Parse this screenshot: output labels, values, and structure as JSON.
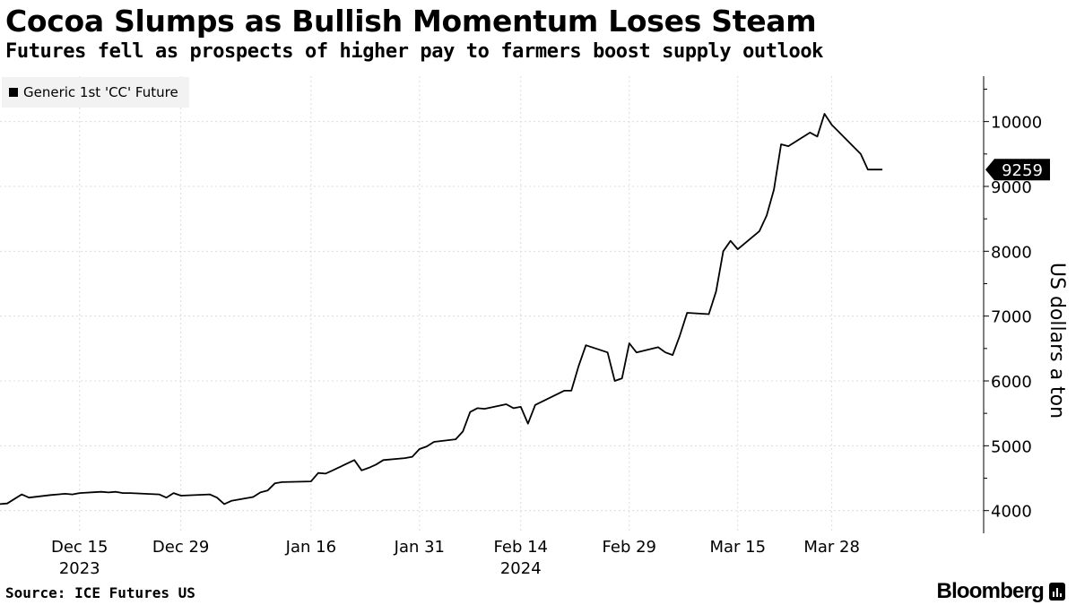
{
  "title": "Cocoa Slumps as Bullish Momentum Loses Steam",
  "subtitle": "Futures fell as prospects of higher pay to farmers boost supply outlook",
  "source": "Source: ICE Futures US",
  "brand": "Bloomberg",
  "brand_icon": "bloomberg-logo-icon",
  "colors": {
    "line": "#000000",
    "grid": "#dcdcdc",
    "legend_bg": "#f2f2f2",
    "callout_bg": "#000000",
    "callout_text": "#ffffff"
  },
  "chart_data": {
    "type": "line",
    "x_type": "date",
    "ylabel": "US dollars a ton",
    "ylim": [
      3650,
      10700
    ],
    "xlim": [
      "2023-12-04",
      "2024-04-18"
    ],
    "y_axis_side": "right",
    "grid": "horizontal",
    "legend_position": "top-left",
    "yticks": [
      4000,
      5000,
      6000,
      7000,
      8000,
      9000,
      10000
    ],
    "ytick_labels": [
      "4000",
      "5000",
      "6000",
      "7000",
      "8000",
      "9000",
      "10000"
    ],
    "xticks": [
      {
        "date": "2023-12-15",
        "label": "Dec 15",
        "year": "2023"
      },
      {
        "date": "2023-12-29",
        "label": "Dec 29",
        "year": ""
      },
      {
        "date": "2024-01-16",
        "label": "Jan 16",
        "year": ""
      },
      {
        "date": "2024-01-31",
        "label": "Jan 31",
        "year": ""
      },
      {
        "date": "2024-02-14",
        "label": "Feb 14",
        "year": "2024"
      },
      {
        "date": "2024-02-29",
        "label": "Feb 29",
        "year": ""
      },
      {
        "date": "2024-03-15",
        "label": "Mar 15",
        "year": ""
      },
      {
        "date": "2024-03-28",
        "label": "Mar 28",
        "year": ""
      }
    ],
    "last_value_label": "9259",
    "series": [
      {
        "name": "Generic 1st 'CC' Future",
        "x": [
          "2023-12-04",
          "2023-12-05",
          "2023-12-06",
          "2023-12-07",
          "2023-12-08",
          "2023-12-11",
          "2023-12-12",
          "2023-12-13",
          "2023-12-14",
          "2023-12-15",
          "2023-12-18",
          "2023-12-19",
          "2023-12-20",
          "2023-12-21",
          "2023-12-22",
          "2023-12-26",
          "2023-12-27",
          "2023-12-28",
          "2023-12-29",
          "2024-01-02",
          "2024-01-03",
          "2024-01-04",
          "2024-01-05",
          "2024-01-08",
          "2024-01-09",
          "2024-01-10",
          "2024-01-11",
          "2024-01-12",
          "2024-01-16",
          "2024-01-17",
          "2024-01-18",
          "2024-01-19",
          "2024-01-22",
          "2024-01-23",
          "2024-01-24",
          "2024-01-25",
          "2024-01-26",
          "2024-01-29",
          "2024-01-30",
          "2024-01-31",
          "2024-02-01",
          "2024-02-02",
          "2024-02-05",
          "2024-02-06",
          "2024-02-07",
          "2024-02-08",
          "2024-02-09",
          "2024-02-12",
          "2024-02-13",
          "2024-02-14",
          "2024-02-15",
          "2024-02-16",
          "2024-02-20",
          "2024-02-21",
          "2024-02-22",
          "2024-02-23",
          "2024-02-26",
          "2024-02-27",
          "2024-02-28",
          "2024-02-29",
          "2024-03-01",
          "2024-03-04",
          "2024-03-05",
          "2024-03-06",
          "2024-03-07",
          "2024-03-08",
          "2024-03-11",
          "2024-03-12",
          "2024-03-13",
          "2024-03-14",
          "2024-03-15",
          "2024-03-18",
          "2024-03-19",
          "2024-03-20",
          "2024-03-21",
          "2024-03-22",
          "2024-03-25",
          "2024-03-26",
          "2024-03-27",
          "2024-03-28",
          "2024-04-01",
          "2024-04-02",
          "2024-04-03",
          "2024-04-04"
        ],
        "values": [
          4100,
          4110,
          4180,
          4250,
          4200,
          4240,
          4250,
          4260,
          4250,
          4270,
          4290,
          4280,
          4290,
          4270,
          4270,
          4250,
          4200,
          4270,
          4230,
          4250,
          4200,
          4100,
          4150,
          4210,
          4280,
          4310,
          4420,
          4440,
          4450,
          4580,
          4570,
          4620,
          4780,
          4620,
          4660,
          4710,
          4780,
          4810,
          4830,
          4950,
          4990,
          5060,
          5100,
          5220,
          5520,
          5580,
          5570,
          5640,
          5580,
          5600,
          5340,
          5630,
          5850,
          5850,
          6230,
          6550,
          6440,
          6000,
          6040,
          6580,
          6440,
          6520,
          6440,
          6400,
          6700,
          7050,
          7030,
          7380,
          8000,
          8160,
          8030,
          8310,
          8550,
          8950,
          9650,
          9620,
          9830,
          9770,
          10120,
          9950,
          9500,
          9259,
          9259,
          9259
        ]
      }
    ]
  }
}
